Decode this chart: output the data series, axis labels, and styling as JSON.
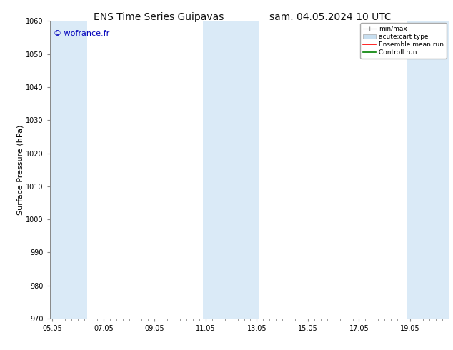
{
  "title_left": "ENS Time Series Guipavas",
  "title_right": "sam. 04.05.2024 10 UTC",
  "ylabel": "Surface Pressure (hPa)",
  "ylim": [
    970,
    1060
  ],
  "yticks": [
    970,
    980,
    990,
    1000,
    1010,
    1020,
    1030,
    1040,
    1050,
    1060
  ],
  "xtick_labels": [
    "05.05",
    "07.05",
    "09.05",
    "11.05",
    "13.05",
    "15.05",
    "17.05",
    "19.05"
  ],
  "xtick_positions": [
    0,
    2,
    4,
    6,
    8,
    10,
    12,
    14
  ],
  "xlim": [
    -0.1,
    15.5
  ],
  "watermark": "© wofrance.fr",
  "watermark_color": "#0000bb",
  "shaded_bands": [
    {
      "x_start": -0.1,
      "x_end": 1.35,
      "color": "#daeaf7"
    },
    {
      "x_start": 5.9,
      "x_end": 8.1,
      "color": "#daeaf7"
    },
    {
      "x_start": 13.9,
      "x_end": 15.5,
      "color": "#daeaf7"
    }
  ],
  "legend_items": [
    {
      "label": "min/max",
      "type": "errorbar",
      "color": "#999999"
    },
    {
      "label": "acute;cart type",
      "type": "bar",
      "color": "#c8dff0"
    },
    {
      "label": "Ensemble mean run",
      "type": "line",
      "color": "#ff0000"
    },
    {
      "label": "Controll run",
      "type": "line",
      "color": "#008000"
    }
  ],
  "bg_color": "#ffffff",
  "plot_bg_color": "#ffffff",
  "spine_color": "#888888",
  "tick_color": "#333333",
  "title_fontsize": 10,
  "tick_fontsize": 7,
  "ylabel_fontsize": 8,
  "watermark_fontsize": 8,
  "legend_fontsize": 6.5
}
